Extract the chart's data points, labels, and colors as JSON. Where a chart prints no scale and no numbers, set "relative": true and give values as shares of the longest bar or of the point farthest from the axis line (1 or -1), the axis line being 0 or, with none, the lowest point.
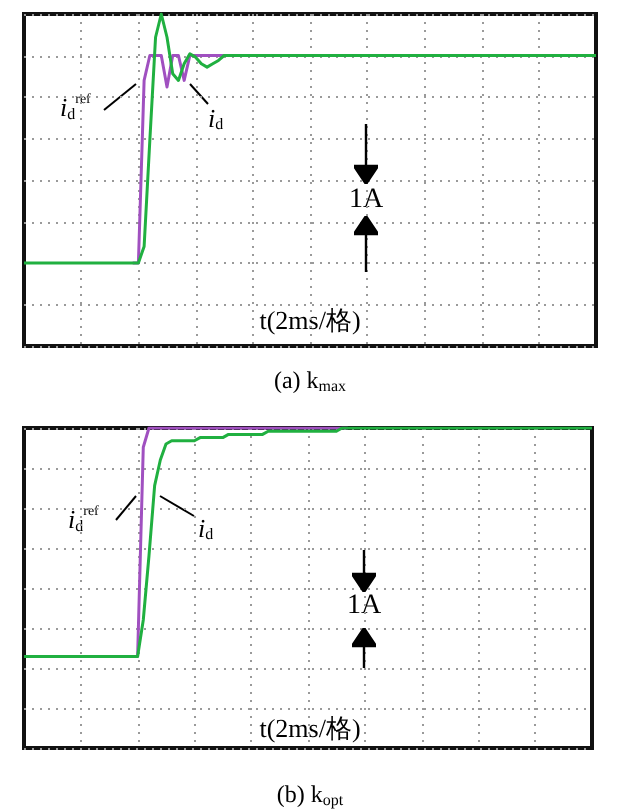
{
  "chart_data": [
    {
      "type": "line",
      "title": "(a) k$_{max}$",
      "xlabel": "t(2ms/格)",
      "relative": true,
      "grid": true,
      "legend": false,
      "marker": "none",
      "annotations": [
        "1A"
      ],
      "categories": [
        null,
        null,
        null,
        null,
        null,
        null,
        null,
        null,
        null,
        null,
        null,
        null,
        null,
        null,
        null,
        null,
        null,
        null,
        null,
        null,
        null,
        null,
        null,
        null,
        null,
        null,
        null,
        null,
        null,
        null,
        null,
        null,
        null,
        null,
        null,
        null,
        null,
        null,
        null,
        null,
        null,
        null,
        null,
        null,
        null,
        null,
        null,
        null,
        null,
        null,
        null,
        null,
        null,
        null,
        null,
        null,
        null,
        null,
        null,
        null,
        null,
        null,
        null,
        null,
        null,
        null,
        null,
        null,
        null,
        null,
        null,
        null,
        null,
        null,
        null,
        null,
        null,
        null,
        null,
        null,
        null,
        null,
        null,
        null,
        null,
        null,
        null,
        null,
        null,
        null,
        null,
        null,
        null,
        null,
        null,
        null,
        null,
        null,
        null,
        null,
        null
      ],
      "series": [
        {
          "name": "i$_{d}$$^{ref}$",
          "color": "#a050c0",
          "values": [
            null,
            null,
            null,
            null,
            null,
            null,
            null,
            null,
            null,
            null,
            null,
            null,
            null,
            null,
            null,
            null,
            null,
            null,
            null,
            0.25,
            0.25,
            0.8,
            0.875,
            0.875,
            0.875,
            0.78,
            0.875,
            0.875,
            0.8,
            0.875,
            0.875,
            0.875,
            0.875,
            0.875,
            0.875,
            0.875,
            0.875,
            null,
            null,
            null,
            null,
            null,
            null,
            null,
            null,
            null,
            null,
            null,
            null,
            null,
            null,
            null,
            null,
            null,
            null,
            null,
            null,
            null,
            null,
            null,
            null,
            null,
            null,
            null,
            null,
            null,
            null,
            null,
            null,
            null,
            null,
            null,
            null,
            null,
            null,
            null,
            null,
            null,
            null,
            null,
            null,
            null,
            null,
            null,
            null,
            null,
            null,
            null,
            null,
            null,
            null,
            null,
            null,
            null,
            null,
            null,
            null,
            null,
            null,
            null,
            null
          ]
        },
        {
          "name": "i$_{d}$",
          "color": "#20b040",
          "values": [
            0.25,
            0.25,
            0.25,
            0.25,
            0.25,
            0.25,
            0.25,
            0.25,
            0.25,
            0.25,
            0.25,
            0.25,
            0.25,
            0.25,
            0.25,
            0.25,
            0.25,
            0.25,
            0.25,
            0.25,
            0.25,
            0.3,
            0.62,
            0.93,
            1,
            0.93,
            0.82,
            0.8,
            0.85,
            0.88,
            0.87,
            0.85,
            0.84,
            0.85,
            0.86,
            0.875,
            0.875,
            0.875,
            0.875,
            0.875,
            0.875,
            0.875,
            0.875,
            0.875,
            0.875,
            0.875,
            0.875,
            0.875,
            0.875,
            0.875,
            0.875,
            0.875,
            0.875,
            0.875,
            0.875,
            0.875,
            0.875,
            0.875,
            0.875,
            0.875,
            0.875,
            0.875,
            0.875,
            0.875,
            0.875,
            0.875,
            0.875,
            0.875,
            0.875,
            0.875,
            0.875,
            0.875,
            0.875,
            0.875,
            0.875,
            0.875,
            0.875,
            0.875,
            0.875,
            0.875,
            0.875,
            0.875,
            0.875,
            0.875,
            0.875,
            0.875,
            0.875,
            0.875,
            0.875,
            0.875,
            0.875,
            0.875,
            0.875,
            0.875,
            0.875,
            0.875,
            0.875,
            0.875,
            0.875,
            0.875,
            0.875
          ]
        }
      ]
    },
    {
      "type": "line",
      "title": "(b) k$_{opt}$",
      "xlabel": "t(2ms/格)",
      "relative": true,
      "grid": true,
      "legend": false,
      "marker": "none",
      "annotations": [
        "1A"
      ],
      "categories": [
        null,
        null,
        null,
        null,
        null,
        null,
        null,
        null,
        null,
        null,
        null,
        null,
        null,
        null,
        null,
        null,
        null,
        null,
        null,
        null,
        null,
        null,
        null,
        null,
        null,
        null,
        null,
        null,
        null,
        null,
        null,
        null,
        null,
        null,
        null,
        null,
        null,
        null,
        null,
        null,
        null,
        null,
        null,
        null,
        null,
        null,
        null,
        null,
        null,
        null,
        null,
        null,
        null,
        null,
        null,
        null,
        null,
        null,
        null,
        null,
        null,
        null,
        null,
        null,
        null,
        null,
        null,
        null,
        null,
        null,
        null,
        null,
        null,
        null,
        null,
        null,
        null,
        null,
        null,
        null,
        null,
        null,
        null,
        null,
        null,
        null,
        null,
        null,
        null,
        null,
        null,
        null,
        null,
        null,
        null,
        null,
        null,
        null,
        null,
        null,
        null
      ],
      "series": [
        {
          "name": "i$_{d}$$^{ref}$",
          "color": "#a050c0",
          "values": [
            null,
            null,
            null,
            null,
            null,
            null,
            null,
            null,
            null,
            null,
            null,
            null,
            null,
            null,
            null,
            null,
            null,
            null,
            null,
            0.286,
            0.286,
            0.94,
            1,
            1,
            1,
            1,
            1,
            1,
            1,
            1,
            1,
            1,
            1,
            1,
            1,
            1,
            1,
            1,
            1,
            1,
            1,
            1,
            1,
            1,
            1,
            1,
            1,
            1,
            1,
            1,
            1,
            1,
            1,
            1,
            1,
            1,
            1,
            1,
            null,
            null,
            null,
            null,
            null,
            null,
            null,
            null,
            null,
            null,
            null,
            null,
            null,
            null,
            null,
            null,
            null,
            null,
            null,
            null,
            null,
            null,
            null,
            null,
            null,
            null,
            null,
            null,
            null,
            null,
            null,
            null,
            null,
            null,
            null,
            null,
            null,
            null,
            null,
            null,
            null,
            null,
            null
          ]
        },
        {
          "name": "i$_{d}$",
          "color": "#20b040",
          "values": [
            0.286,
            0.286,
            0.286,
            0.286,
            0.286,
            0.286,
            0.286,
            0.286,
            0.286,
            0.286,
            0.286,
            0.286,
            0.286,
            0.286,
            0.286,
            0.286,
            0.286,
            0.286,
            0.286,
            0.286,
            0.286,
            0.4,
            0.6,
            0.82,
            0.9,
            0.95,
            0.96,
            0.96,
            0.96,
            0.96,
            0.96,
            0.97,
            0.97,
            0.97,
            0.97,
            0.97,
            0.98,
            0.98,
            0.98,
            0.98,
            0.98,
            0.98,
            0.98,
            0.99,
            0.99,
            0.99,
            0.99,
            0.99,
            0.99,
            0.99,
            0.99,
            0.99,
            0.99,
            0.99,
            0.99,
            0.99,
            1,
            1,
            1,
            1,
            1,
            1,
            1,
            1,
            1,
            1,
            1,
            1,
            1,
            1,
            1,
            1,
            1,
            1,
            1,
            1,
            1,
            1,
            1,
            1,
            1,
            1,
            1,
            1,
            1,
            1,
            1,
            1,
            1,
            1,
            1,
            1,
            1,
            1,
            1,
            1,
            1,
            1,
            1,
            1,
            1
          ]
        }
      ]
    }
  ]
}
